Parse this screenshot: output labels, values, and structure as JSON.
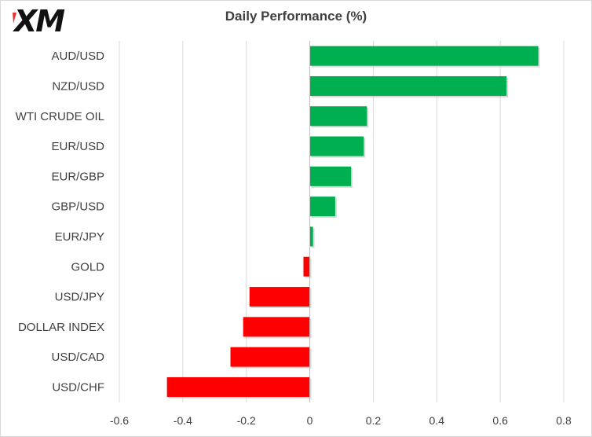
{
  "logo": {
    "text": "XM",
    "color": "#111111",
    "accent": "#e3342f"
  },
  "chart_data": {
    "type": "bar",
    "orientation": "horizontal",
    "title": "Daily Performance (%)",
    "xlabel": "",
    "ylabel": "",
    "categories": [
      "AUD/USD",
      "NZD/USD",
      "WTI CRUDE OIL",
      "EUR/USD",
      "EUR/GBP",
      "GBP/USD",
      "EUR/JPY",
      "GOLD",
      "USD/JPY",
      "DOLLAR INDEX",
      "USD/CAD",
      "USD/CHF"
    ],
    "values": [
      0.72,
      0.62,
      0.18,
      0.17,
      0.13,
      0.08,
      0.01,
      -0.02,
      -0.19,
      -0.21,
      -0.25,
      -0.45
    ],
    "xlim": [
      -0.6,
      0.8
    ],
    "xticks": [
      -0.6,
      -0.4,
      -0.2,
      0,
      0.2,
      0.4,
      0.6,
      0.8
    ],
    "tick_labels": [
      "-0.6",
      "-0.4",
      "-0.2",
      "0",
      "0.2",
      "0.4",
      "0.6",
      "0.8"
    ],
    "grid": true,
    "legend": "none",
    "colors": {
      "positive": "#00b050",
      "negative": "#ff0000"
    }
  }
}
